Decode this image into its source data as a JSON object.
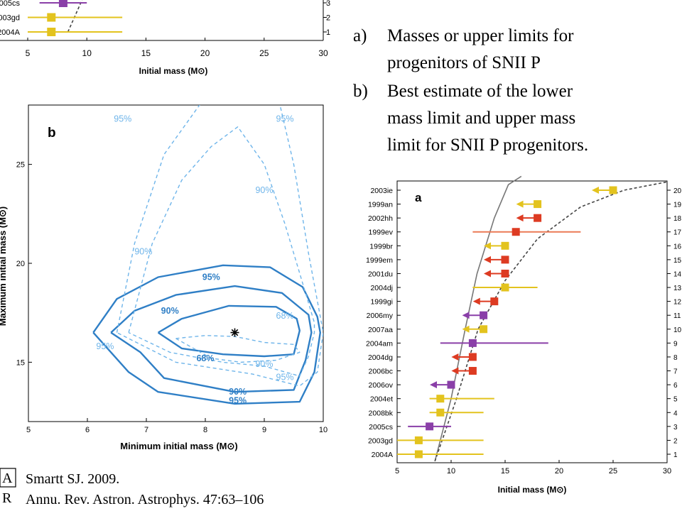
{
  "slide": {
    "bullets": [
      {
        "marker": "a)",
        "lines": [
          "Masses or upper limits for",
          "progenitors of SNII P"
        ]
      },
      {
        "marker": "b)",
        "lines": [
          "Best estimate of the lower",
          "mass limit and upper mass",
          "limit for SNII P progenitors."
        ]
      }
    ],
    "citation": {
      "logo_glyphs": [
        "A",
        "R"
      ],
      "line1": "Smartt SJ. 2009.",
      "line2": "Annu. Rev. Astron. Astrophys. 47:63–106"
    }
  },
  "colors": {
    "purple": "#8a3fa8",
    "yellow": "#e3c31e",
    "red": "#dd3b22",
    "orange_bar": "#ec7a56",
    "contour_solid": "#2f7fc6",
    "contour_dashed": "#6fb5ea",
    "curve": "#777777"
  },
  "chart_data": [
    {
      "type": "scatter",
      "panel": "top-crop",
      "xlabel": "Initial mass (M⊙)",
      "xlim": [
        5,
        30
      ],
      "x_ticks": [
        5,
        10,
        15,
        20,
        25,
        30
      ],
      "right_ticks": [
        1,
        2,
        3
      ],
      "rows": [
        {
          "label": "2005cs",
          "rank": 3,
          "mass": 8,
          "err": [
            6,
            10
          ],
          "kind": "measured",
          "color": "purple"
        },
        {
          "label": "2003gd",
          "rank": 2,
          "mass": 7,
          "err": [
            5,
            13
          ],
          "kind": "measured",
          "color": "yellow"
        },
        {
          "label": "2004A",
          "rank": 1,
          "mass": 7,
          "err": [
            5,
            13
          ],
          "kind": "measured",
          "color": "yellow"
        }
      ]
    },
    {
      "type": "line",
      "panel": "b",
      "panel_label": "b",
      "xlabel": "Minimum initial mass (M⊙)",
      "ylabel": "Maximum initial mass (M⊙)",
      "xlim": [
        5,
        10
      ],
      "ylim": [
        12,
        28
      ],
      "x_ticks": [
        5,
        6,
        7,
        8,
        9,
        10
      ],
      "y_ticks": [
        15,
        20,
        25
      ],
      "best_estimate": {
        "x": 8.5,
        "y": 16.5
      },
      "contours": [
        {
          "level": "68%",
          "style": "solid",
          "points": [
            [
              7.2,
              16.5
            ],
            [
              7.6,
              17.2
            ],
            [
              8.4,
              17.85
            ],
            [
              9.2,
              17.8
            ],
            [
              9.55,
              17.2
            ],
            [
              9.6,
              16.6
            ],
            [
              9.5,
              15.4
            ],
            [
              9.0,
              15.3
            ],
            [
              8.3,
              15.4
            ],
            [
              7.6,
              15.7
            ],
            [
              7.2,
              16.5
            ]
          ]
        },
        {
          "level": "90%",
          "style": "solid",
          "points": [
            [
              6.4,
              16.5
            ],
            [
              6.8,
              17.6
            ],
            [
              7.5,
              18.4
            ],
            [
              8.5,
              18.85
            ],
            [
              9.3,
              18.5
            ],
            [
              9.75,
              17.4
            ],
            [
              9.8,
              16.5
            ],
            [
              9.7,
              15.1
            ],
            [
              9.5,
              13.6
            ],
            [
              8.5,
              13.5
            ],
            [
              7.3,
              14.2
            ],
            [
              6.9,
              15.5
            ],
            [
              6.4,
              16.5
            ]
          ]
        },
        {
          "level": "95%",
          "style": "solid",
          "points": [
            [
              6.1,
              16.5
            ],
            [
              6.5,
              18.2
            ],
            [
              7.2,
              19.3
            ],
            [
              8.3,
              19.9
            ],
            [
              9.1,
              19.8
            ],
            [
              9.65,
              18.8
            ],
            [
              9.9,
              17.3
            ],
            [
              9.95,
              16.5
            ],
            [
              9.85,
              14.5
            ],
            [
              9.6,
              13.0
            ],
            [
              8.5,
              12.9
            ],
            [
              7.2,
              13.5
            ],
            [
              6.7,
              14.5
            ],
            [
              6.1,
              16.5
            ]
          ]
        },
        {
          "level": "68%",
          "style": "dashed",
          "points": [
            [
              7.5,
              16.2
            ],
            [
              8.0,
              16.35
            ],
            [
              8.5,
              16.3
            ],
            [
              9.0,
              16.0
            ],
            [
              9.5,
              15.9
            ],
            [
              9.6,
              15.5
            ],
            [
              9.2,
              15.1
            ],
            [
              8.6,
              15.0
            ],
            [
              8.1,
              15.2
            ],
            [
              7.5,
              16.2
            ]
          ]
        },
        {
          "level": "90%",
          "style": "dashed",
          "points": [
            [
              6.7,
              16.5
            ],
            [
              7.1,
              21.0
            ],
            [
              7.6,
              24.2
            ],
            [
              8.1,
              25.9
            ],
            [
              8.55,
              26.9
            ],
            [
              9.0,
              25.0
            ],
            [
              9.35,
              22.0
            ],
            [
              9.6,
              19.5
            ],
            [
              9.85,
              17.0
            ],
            [
              9.85,
              16.5
            ],
            [
              9.75,
              15.3
            ],
            [
              9.6,
              14.3
            ],
            [
              9.0,
              14.8
            ],
            [
              8.3,
              15.0
            ],
            [
              7.4,
              15.5
            ],
            [
              6.7,
              16.5
            ]
          ]
        },
        {
          "level": "95%",
          "style": "dashed",
          "points": [
            [
              6.5,
              16.5
            ],
            [
              6.8,
              21.0
            ],
            [
              7.3,
              25.5
            ],
            [
              7.95,
              28.2
            ]
          ]
        },
        {
          "level": "95%",
          "style": "dashed",
          "points": [
            [
              9.25,
              28.2
            ],
            [
              9.5,
              25.0
            ],
            [
              9.75,
              20.5
            ],
            [
              10.0,
              16.5
            ],
            [
              9.9,
              14.5
            ],
            [
              9.6,
              13.8
            ],
            [
              8.8,
              14.4
            ],
            [
              7.5,
              15.0
            ],
            [
              6.5,
              16.5
            ]
          ]
        }
      ],
      "contour_labels": [
        {
          "text": "95%",
          "x": 8.1,
          "y": 19.3,
          "style": "solid"
        },
        {
          "text": "90%",
          "x": 7.4,
          "y": 17.6,
          "style": "solid"
        },
        {
          "text": "68%",
          "x": 8.0,
          "y": 15.2,
          "style": "solid"
        },
        {
          "text": "90%",
          "x": 8.55,
          "y": 13.5,
          "style": "solid"
        },
        {
          "text": "95%",
          "x": 8.55,
          "y": 13.05,
          "style": "solid"
        },
        {
          "text": "95%",
          "x": 6.6,
          "y": 27.3,
          "style": "dashed"
        },
        {
          "text": "95%",
          "x": 9.35,
          "y": 27.3,
          "style": "dashed"
        },
        {
          "text": "90%",
          "x": 9.0,
          "y": 23.7,
          "style": "dashed"
        },
        {
          "text": "90%",
          "x": 6.95,
          "y": 20.6,
          "style": "dashed"
        },
        {
          "text": "68%",
          "x": 9.35,
          "y": 17.35,
          "style": "dashed"
        },
        {
          "text": "95%",
          "x": 6.3,
          "y": 15.8,
          "style": "dashed"
        },
        {
          "text": "90%",
          "x": 9.0,
          "y": 14.9,
          "style": "dashed"
        },
        {
          "text": "95%",
          "x": 9.35,
          "y": 14.25,
          "style": "dashed"
        }
      ]
    },
    {
      "type": "scatter",
      "panel": "a",
      "panel_label": "a",
      "xlabel": "Initial mass (M⊙)",
      "xlim": [
        5,
        30
      ],
      "x_ticks": [
        5,
        10,
        15,
        20,
        25,
        30
      ],
      "right_ticks": [
        20,
        19,
        18,
        17,
        16,
        15,
        14,
        13,
        12,
        11,
        10,
        9,
        8,
        7,
        6,
        5,
        4,
        3,
        2,
        1
      ],
      "rows": [
        {
          "label": "2003ie",
          "rank": 20,
          "mass": 25,
          "kind": "limit",
          "color": "yellow"
        },
        {
          "label": "1999an",
          "rank": 19,
          "mass": 18,
          "kind": "limit",
          "color": "yellow"
        },
        {
          "label": "2002hh",
          "rank": 18,
          "mass": 18,
          "kind": "limit",
          "color": "red"
        },
        {
          "label": "1999ev",
          "rank": 17,
          "mass": 16,
          "err": [
            12,
            22
          ],
          "kind": "measured",
          "color": "red"
        },
        {
          "label": "1999br",
          "rank": 16,
          "mass": 15,
          "kind": "limit",
          "color": "yellow"
        },
        {
          "label": "1999em",
          "rank": 15,
          "mass": 15,
          "kind": "limit",
          "color": "red"
        },
        {
          "label": "2001du",
          "rank": 14,
          "mass": 15,
          "kind": "limit",
          "color": "red"
        },
        {
          "label": "2004dj",
          "rank": 13,
          "mass": 15,
          "err": [
            12,
            18
          ],
          "kind": "measured",
          "color": "yellow"
        },
        {
          "label": "1999gi",
          "rank": 12,
          "mass": 14,
          "kind": "limit",
          "color": "red"
        },
        {
          "label": "2006my",
          "rank": 11,
          "mass": 13,
          "kind": "limit",
          "color": "purple"
        },
        {
          "label": "2007aa",
          "rank": 10,
          "mass": 13,
          "kind": "limit",
          "color": "yellow"
        },
        {
          "label": "2004am",
          "rank": 9,
          "mass": 12,
          "err": [
            9,
            19
          ],
          "kind": "measured",
          "color": "purple"
        },
        {
          "label": "2004dg",
          "rank": 8,
          "mass": 12,
          "kind": "limit",
          "color": "red"
        },
        {
          "label": "2006bc",
          "rank": 7,
          "mass": 12,
          "kind": "limit",
          "color": "red"
        },
        {
          "label": "2006ov",
          "rank": 6,
          "mass": 10,
          "kind": "limit",
          "color": "purple"
        },
        {
          "label": "2004et",
          "rank": 5,
          "mass": 9,
          "err": [
            8,
            14
          ],
          "kind": "measured",
          "color": "yellow"
        },
        {
          "label": "2008bk",
          "rank": 4,
          "mass": 9,
          "err": [
            8,
            13
          ],
          "kind": "measured",
          "color": "yellow"
        },
        {
          "label": "2005cs",
          "rank": 3,
          "mass": 8,
          "err": [
            6,
            10
          ],
          "kind": "measured",
          "color": "purple"
        },
        {
          "label": "2003gd",
          "rank": 2,
          "mass": 7,
          "err": [
            5,
            13
          ],
          "kind": "measured",
          "color": "yellow"
        },
        {
          "label": "2004A",
          "rank": 1,
          "mass": 7,
          "err": [
            5,
            13
          ],
          "kind": "measured",
          "color": "yellow"
        }
      ],
      "curves": [
        {
          "style": "solid",
          "points": [
            [
              8.5,
              0.5
            ],
            [
              10,
              5
            ],
            [
              11.3,
              10
            ],
            [
              12.4,
              14
            ],
            [
              14,
              18
            ],
            [
              15.3,
              20.4
            ],
            [
              16.5,
              21
            ]
          ]
        },
        {
          "style": "dashed",
          "points": [
            [
              8.5,
              0.5
            ],
            [
              10.5,
              5
            ],
            [
              12.5,
              10
            ],
            [
              15,
              13.5
            ],
            [
              18,
              16.5
            ],
            [
              22,
              18.8
            ],
            [
              26,
              20
            ],
            [
              30,
              20.6
            ]
          ]
        }
      ]
    }
  ]
}
